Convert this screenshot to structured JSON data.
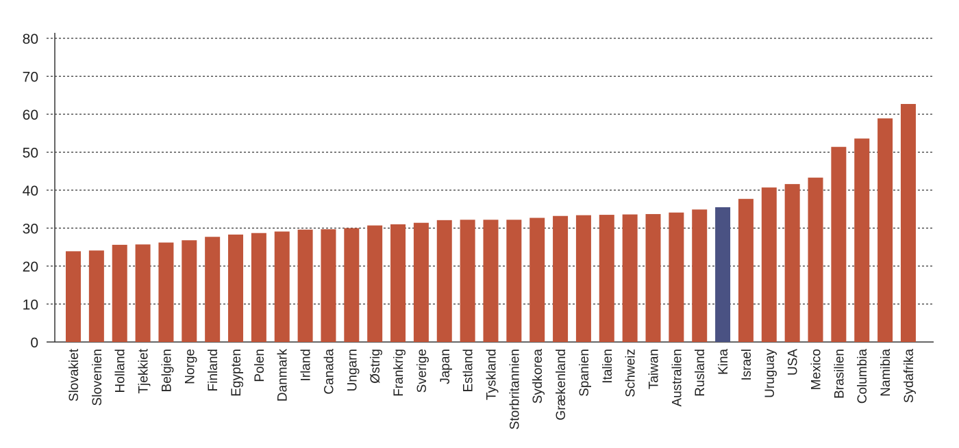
{
  "chart_data": {
    "type": "bar",
    "title": "",
    "xlabel": "",
    "ylabel": "",
    "ylim": [
      0,
      80
    ],
    "yticks": [
      0,
      10,
      20,
      30,
      40,
      50,
      60,
      70,
      80
    ],
    "grid": "horizontal dashed",
    "categories": [
      "Slovakiet",
      "Slovenien",
      "Holland",
      "Tjekkiet",
      "Belgien",
      "Norge",
      "Finland",
      "Egypten",
      "Polen",
      "Danmark",
      "Irland",
      "Canada",
      "Ungarn",
      "Østrig",
      "Frankrig",
      "Sverige",
      "Japan",
      "Estland",
      "Tyskland",
      "Storbritannien",
      "Sydkorea",
      "Grækenland",
      "Spanien",
      "Italien",
      "Schweiz",
      "Taiwan",
      "Australien",
      "Rusland",
      "Kina",
      "Israel",
      "Uruguay",
      "USA",
      "Mexico",
      "Brasilien",
      "Columbia",
      "Namibia",
      "Sydafrika"
    ],
    "values": [
      23.9,
      24.1,
      25.6,
      25.7,
      26.2,
      26.8,
      27.7,
      28.3,
      28.7,
      29.1,
      29.6,
      29.7,
      30.0,
      30.7,
      31.0,
      31.4,
      32.1,
      32.2,
      32.2,
      32.2,
      32.7,
      33.2,
      33.4,
      33.5,
      33.6,
      33.7,
      34.1,
      34.9,
      35.5,
      37.7,
      40.7,
      41.6,
      43.3,
      51.4,
      53.6,
      58.9,
      62.7
    ],
    "colors": {
      "default_bar": "#c0553a",
      "highlight_bar": "#4a5283",
      "highlight_category": "Kina",
      "grid": "#333333",
      "axis": "#333333"
    }
  }
}
